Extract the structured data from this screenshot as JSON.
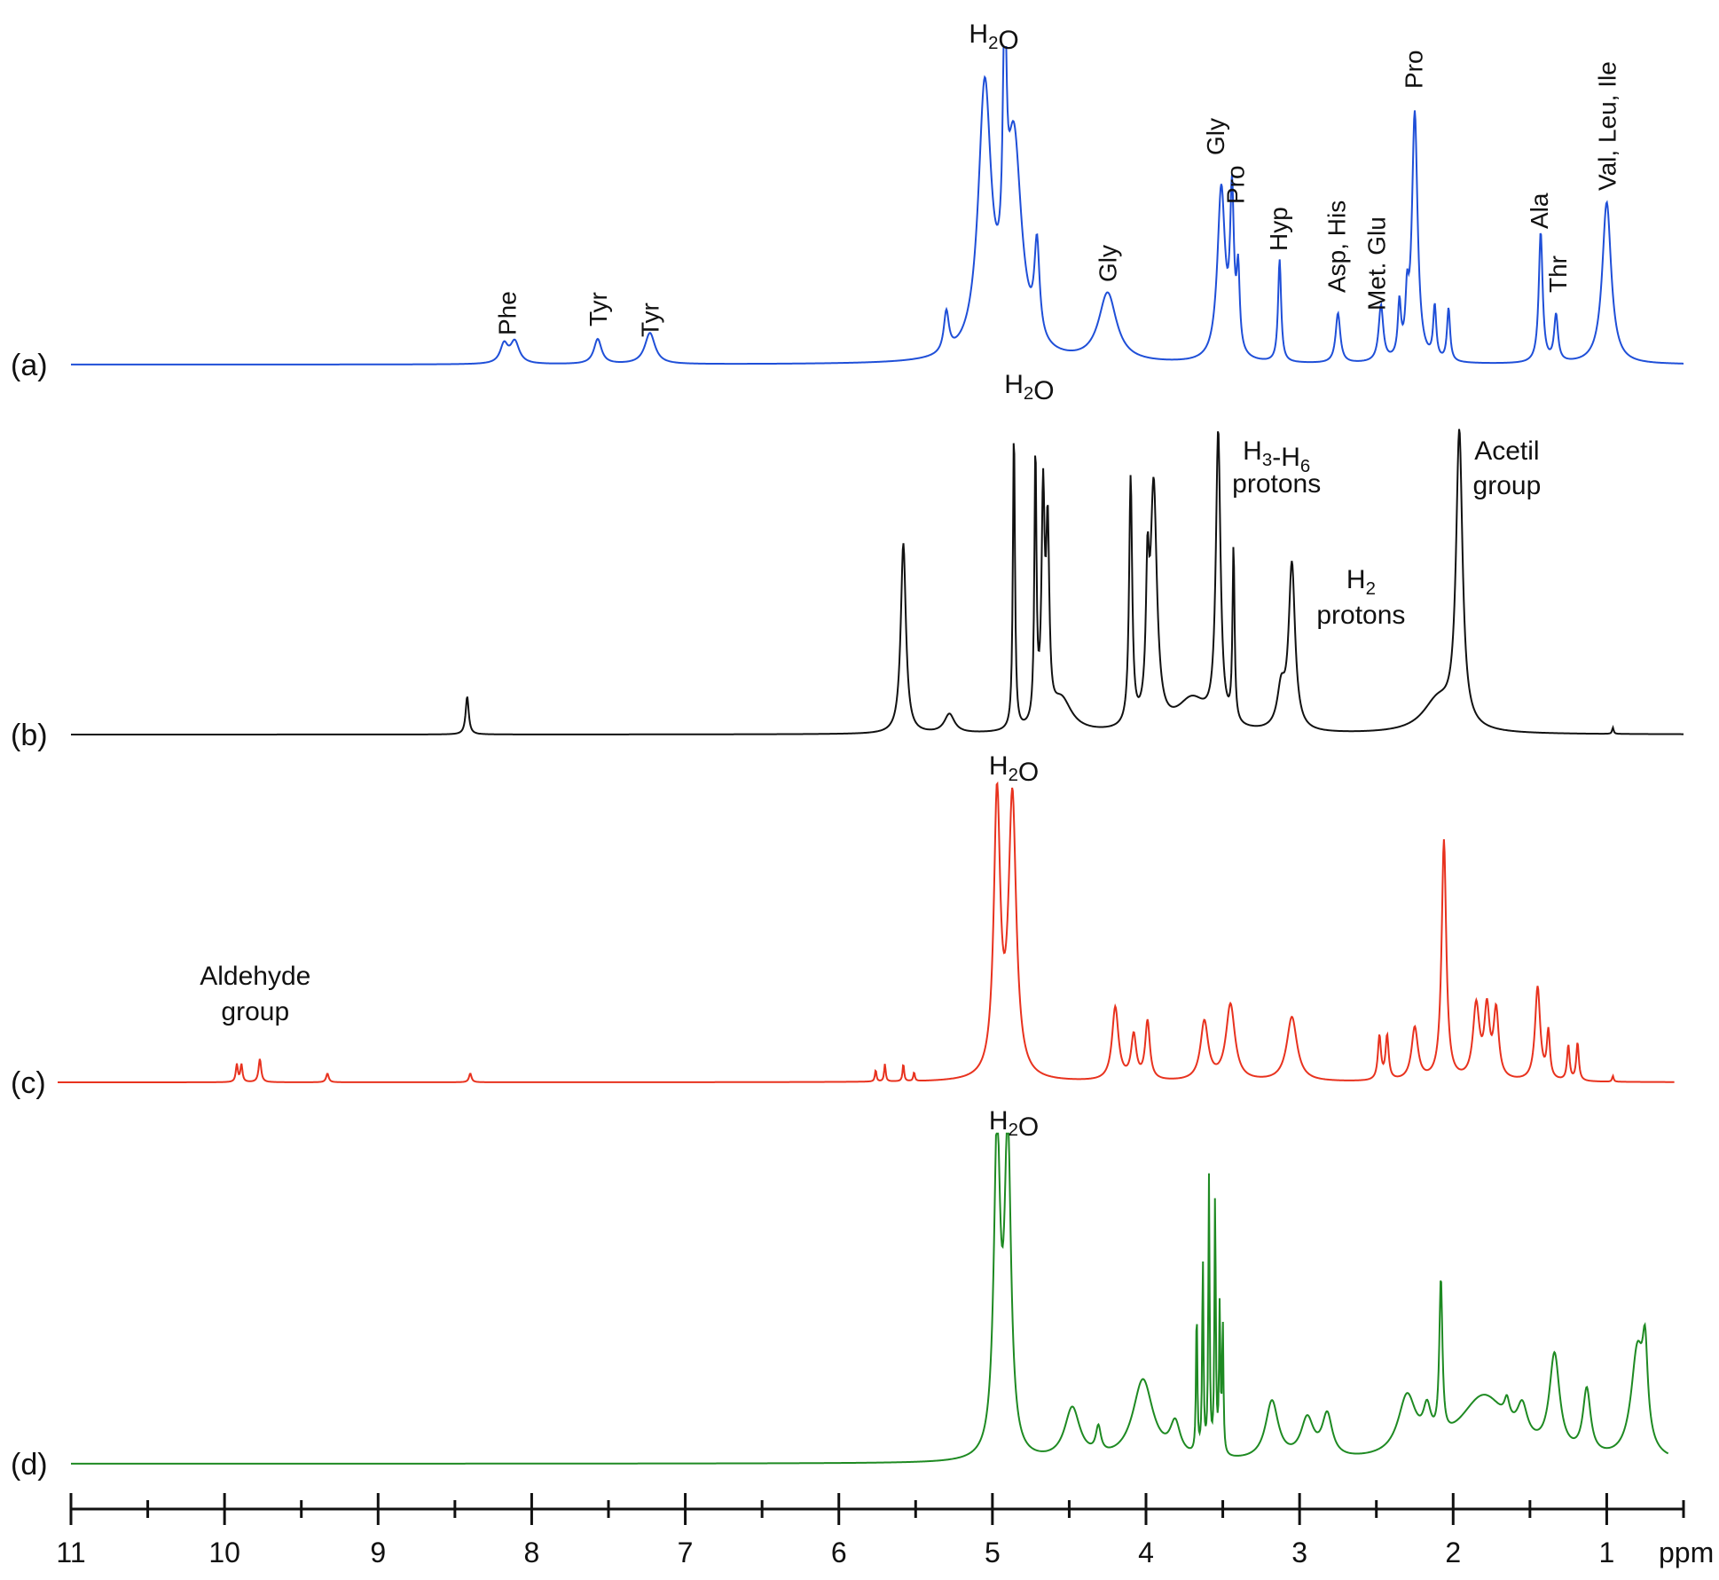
{
  "chart_data": {
    "type": "line",
    "x_unit": "ppm",
    "xlim": [
      11,
      0.5
    ],
    "x_ticks_major": [
      11,
      10,
      9,
      8,
      7,
      6,
      5,
      4,
      3,
      2,
      1
    ],
    "x_ticks_minor": [
      10.5,
      9.5,
      8.5,
      7.5,
      6.5,
      5.5,
      4.5,
      3.5,
      2.5,
      1.5,
      0.5
    ],
    "axis_unit_label": "ppm",
    "grid": false,
    "series": [
      {
        "panel": "(a)",
        "color": "#1f4fd8",
        "baseline_end": 0.5,
        "peaks": [
          {
            "ppm": 8.18,
            "h": 0.06,
            "w": 0.03
          },
          {
            "ppm": 8.11,
            "h": 0.07,
            "w": 0.035
          },
          {
            "ppm": 7.57,
            "h": 0.08,
            "w": 0.03
          },
          {
            "ppm": 7.23,
            "h": 0.1,
            "w": 0.04
          },
          {
            "ppm": 5.3,
            "h": 0.13,
            "w": 0.02
          },
          {
            "ppm": 5.05,
            "h": 0.85,
            "w": 0.05
          },
          {
            "ppm": 4.92,
            "h": 0.9,
            "w": 0.012
          },
          {
            "ppm": 4.86,
            "h": 0.68,
            "w": 0.06
          },
          {
            "ppm": 4.71,
            "h": 0.3,
            "w": 0.02
          },
          {
            "ppm": 4.25,
            "h": 0.22,
            "w": 0.07
          },
          {
            "ppm": 3.51,
            "h": 0.55,
            "w": 0.03
          },
          {
            "ppm": 3.44,
            "h": 0.5,
            "w": 0.015
          },
          {
            "ppm": 3.4,
            "h": 0.25,
            "w": 0.012
          },
          {
            "ppm": 3.13,
            "h": 0.33,
            "w": 0.012
          },
          {
            "ppm": 2.75,
            "h": 0.16,
            "w": 0.018
          },
          {
            "ppm": 2.47,
            "h": 0.18,
            "w": 0.018
          },
          {
            "ppm": 2.35,
            "h": 0.17,
            "w": 0.012
          },
          {
            "ppm": 2.3,
            "h": 0.16,
            "w": 0.012
          },
          {
            "ppm": 2.25,
            "h": 0.8,
            "w": 0.022
          },
          {
            "ppm": 2.12,
            "h": 0.17,
            "w": 0.012
          },
          {
            "ppm": 2.03,
            "h": 0.17,
            "w": 0.012
          },
          {
            "ppm": 1.43,
            "h": 0.42,
            "w": 0.015
          },
          {
            "ppm": 1.33,
            "h": 0.15,
            "w": 0.015
          },
          {
            "ppm": 1.0,
            "h": 0.52,
            "w": 0.035
          }
        ]
      },
      {
        "panel": "(b)",
        "color": "#111111",
        "baseline_end": 0.5,
        "peaks": [
          {
            "ppm": 8.42,
            "h": 0.12,
            "w": 0.012
          },
          {
            "ppm": 5.58,
            "h": 0.6,
            "w": 0.02
          },
          {
            "ppm": 5.28,
            "h": 0.06,
            "w": 0.04
          },
          {
            "ppm": 4.86,
            "h": 0.95,
            "w": 0.008
          },
          {
            "ppm": 4.72,
            "h": 0.85,
            "w": 0.008
          },
          {
            "ppm": 4.67,
            "h": 0.7,
            "w": 0.012
          },
          {
            "ppm": 4.64,
            "h": 0.58,
            "w": 0.012
          },
          {
            "ppm": 4.55,
            "h": 0.1,
            "w": 0.08
          },
          {
            "ppm": 4.1,
            "h": 0.78,
            "w": 0.012
          },
          {
            "ppm": 3.99,
            "h": 0.4,
            "w": 0.012
          },
          {
            "ppm": 3.95,
            "h": 0.75,
            "w": 0.025
          },
          {
            "ppm": 3.7,
            "h": 0.1,
            "w": 0.12
          },
          {
            "ppm": 3.53,
            "h": 0.92,
            "w": 0.018
          },
          {
            "ppm": 3.43,
            "h": 0.55,
            "w": 0.008
          },
          {
            "ppm": 3.12,
            "h": 0.12,
            "w": 0.03
          },
          {
            "ppm": 3.05,
            "h": 0.52,
            "w": 0.025
          },
          {
            "ppm": 2.1,
            "h": 0.1,
            "w": 0.12
          },
          {
            "ppm": 1.96,
            "h": 0.92,
            "w": 0.025
          },
          {
            "ppm": 0.96,
            "h": 0.02,
            "w": 0.006
          }
        ]
      },
      {
        "panel": "(c)",
        "color": "#e8321e",
        "baseline_end": 0.56,
        "peaks": [
          {
            "ppm": 9.92,
            "h": 0.06,
            "w": 0.008
          },
          {
            "ppm": 9.89,
            "h": 0.06,
            "w": 0.008
          },
          {
            "ppm": 9.77,
            "h": 0.08,
            "w": 0.01
          },
          {
            "ppm": 9.33,
            "h": 0.03,
            "w": 0.01
          },
          {
            "ppm": 8.4,
            "h": 0.03,
            "w": 0.01
          },
          {
            "ppm": 5.76,
            "h": 0.04,
            "w": 0.006
          },
          {
            "ppm": 5.7,
            "h": 0.06,
            "w": 0.006
          },
          {
            "ppm": 5.58,
            "h": 0.06,
            "w": 0.006
          },
          {
            "ppm": 5.51,
            "h": 0.03,
            "w": 0.006
          },
          {
            "ppm": 4.97,
            "h": 0.95,
            "w": 0.025
          },
          {
            "ppm": 4.87,
            "h": 0.95,
            "w": 0.03
          },
          {
            "ppm": 4.2,
            "h": 0.25,
            "w": 0.025
          },
          {
            "ppm": 4.08,
            "h": 0.15,
            "w": 0.02
          },
          {
            "ppm": 3.99,
            "h": 0.2,
            "w": 0.018
          },
          {
            "ppm": 3.62,
            "h": 0.2,
            "w": 0.03
          },
          {
            "ppm": 3.45,
            "h": 0.26,
            "w": 0.035
          },
          {
            "ppm": 3.05,
            "h": 0.22,
            "w": 0.04
          },
          {
            "ppm": 2.48,
            "h": 0.15,
            "w": 0.012
          },
          {
            "ppm": 2.43,
            "h": 0.15,
            "w": 0.012
          },
          {
            "ppm": 2.25,
            "h": 0.18,
            "w": 0.025
          },
          {
            "ppm": 2.06,
            "h": 0.82,
            "w": 0.018
          },
          {
            "ppm": 1.85,
            "h": 0.25,
            "w": 0.025
          },
          {
            "ppm": 1.78,
            "h": 0.23,
            "w": 0.02
          },
          {
            "ppm": 1.72,
            "h": 0.23,
            "w": 0.02
          },
          {
            "ppm": 1.45,
            "h": 0.32,
            "w": 0.02
          },
          {
            "ppm": 1.38,
            "h": 0.16,
            "w": 0.012
          },
          {
            "ppm": 1.25,
            "h": 0.12,
            "w": 0.01
          },
          {
            "ppm": 1.19,
            "h": 0.13,
            "w": 0.01
          },
          {
            "ppm": 0.96,
            "h": 0.02,
            "w": 0.006
          }
        ]
      },
      {
        "panel": "(d)",
        "color": "#1e8a22",
        "baseline_end": 0.6,
        "peaks": [
          {
            "ppm": 4.97,
            "h": 0.98,
            "w": 0.025
          },
          {
            "ppm": 4.9,
            "h": 0.98,
            "w": 0.025
          },
          {
            "ppm": 4.48,
            "h": 0.16,
            "w": 0.06
          },
          {
            "ppm": 4.31,
            "h": 0.08,
            "w": 0.02
          },
          {
            "ppm": 4.02,
            "h": 0.25,
            "w": 0.08
          },
          {
            "ppm": 3.81,
            "h": 0.1,
            "w": 0.04
          },
          {
            "ppm": 3.67,
            "h": 0.45,
            "w": 0.005
          },
          {
            "ppm": 3.63,
            "h": 0.6,
            "w": 0.005
          },
          {
            "ppm": 3.59,
            "h": 0.85,
            "w": 0.005
          },
          {
            "ppm": 3.55,
            "h": 0.8,
            "w": 0.005
          },
          {
            "ppm": 3.52,
            "h": 0.45,
            "w": 0.005
          },
          {
            "ppm": 3.5,
            "h": 0.4,
            "w": 0.005
          },
          {
            "ppm": 3.18,
            "h": 0.18,
            "w": 0.05
          },
          {
            "ppm": 2.95,
            "h": 0.12,
            "w": 0.05
          },
          {
            "ppm": 2.82,
            "h": 0.13,
            "w": 0.04
          },
          {
            "ppm": 2.3,
            "h": 0.18,
            "w": 0.07
          },
          {
            "ppm": 2.17,
            "h": 0.1,
            "w": 0.03
          },
          {
            "ppm": 2.08,
            "h": 0.48,
            "w": 0.012
          },
          {
            "ppm": 1.8,
            "h": 0.2,
            "w": 0.2
          },
          {
            "ppm": 1.65,
            "h": 0.06,
            "w": 0.02
          },
          {
            "ppm": 1.55,
            "h": 0.1,
            "w": 0.04
          },
          {
            "ppm": 1.34,
            "h": 0.3,
            "w": 0.04
          },
          {
            "ppm": 1.13,
            "h": 0.2,
            "w": 0.03
          },
          {
            "ppm": 0.8,
            "h": 0.33,
            "w": 0.05
          },
          {
            "ppm": 0.75,
            "h": 0.25,
            "w": 0.02
          }
        ]
      }
    ],
    "annotations": [
      {
        "panel": "(a)",
        "text": "H2O",
        "ppm": 4.99,
        "rotate": false
      },
      {
        "panel": "(a)",
        "text": "Phe",
        "ppm": 8.16,
        "rotate": true
      },
      {
        "panel": "(a)",
        "text": "Tyr",
        "ppm": 7.57,
        "rotate": true
      },
      {
        "panel": "(a)",
        "text": "Tyr",
        "ppm": 7.23,
        "rotate": true
      },
      {
        "panel": "(a)",
        "text": "Gly",
        "ppm": 4.25,
        "rotate": true
      },
      {
        "panel": "(a)",
        "text": "Gly",
        "ppm": 3.55,
        "rotate": true
      },
      {
        "panel": "(a)",
        "text": "Pro",
        "ppm": 3.42,
        "rotate": true
      },
      {
        "panel": "(a)",
        "text": "Hyp",
        "ppm": 3.14,
        "rotate": true
      },
      {
        "panel": "(a)",
        "text": "Asp, His",
        "ppm": 2.76,
        "rotate": true
      },
      {
        "panel": "(a)",
        "text": "Met. Glu",
        "ppm": 2.5,
        "rotate": true
      },
      {
        "panel": "(a)",
        "text": "Pro",
        "ppm": 2.26,
        "rotate": true
      },
      {
        "panel": "(a)",
        "text": "Ala",
        "ppm": 1.44,
        "rotate": true
      },
      {
        "panel": "(a)",
        "text": "Thr",
        "ppm": 1.32,
        "rotate": true
      },
      {
        "panel": "(a)",
        "text": "Val, Leu, Ile",
        "ppm": 1.0,
        "rotate": true
      },
      {
        "panel": "(b)",
        "text": "H2O",
        "ppm": 4.76,
        "rotate": false
      },
      {
        "panel": "(b)",
        "text": "H3-H6",
        "ppm": 3.15,
        "rotate": false
      },
      {
        "panel": "(b)",
        "text": "protons",
        "ppm": 3.15,
        "rotate": false
      },
      {
        "panel": "(b)",
        "text": "H2",
        "ppm": 2.6,
        "rotate": false
      },
      {
        "panel": "(b)",
        "text": "protons",
        "ppm": 2.6,
        "rotate": false
      },
      {
        "panel": "(b)",
        "text": "Acetil",
        "ppm": 1.65,
        "rotate": false
      },
      {
        "panel": "(b)",
        "text": "group",
        "ppm": 1.65,
        "rotate": false
      },
      {
        "panel": "(c)",
        "text": "H2O",
        "ppm": 4.86,
        "rotate": false
      },
      {
        "panel": "(c)",
        "text": "Aldehyde",
        "ppm": 9.8,
        "rotate": false
      },
      {
        "panel": "(c)",
        "text": "group",
        "ppm": 9.8,
        "rotate": false
      },
      {
        "panel": "(d)",
        "text": "H2O",
        "ppm": 4.86,
        "rotate": false
      }
    ]
  }
}
